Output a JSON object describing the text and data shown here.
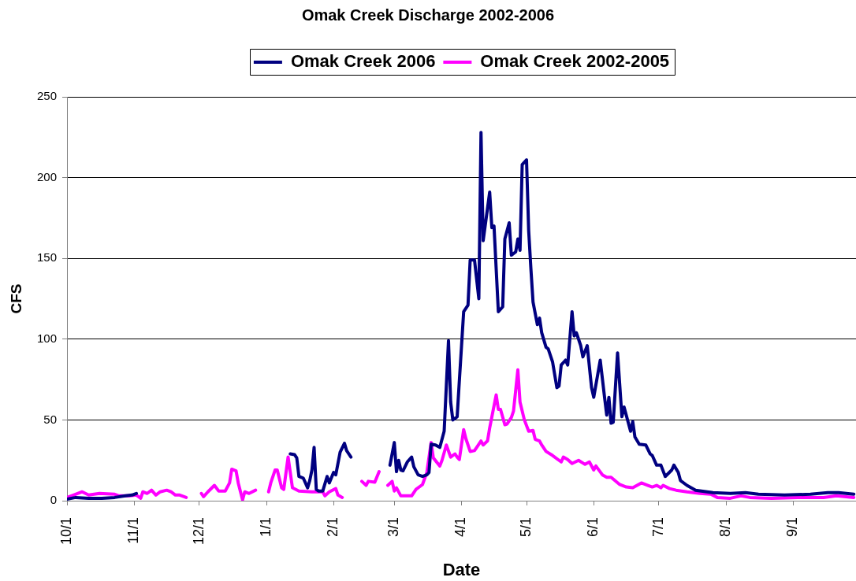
{
  "chart_data": {
    "type": "line",
    "title": "Omak Creek Discharge 2002-2006",
    "xlabel": "Date",
    "ylabel": "CFS",
    "xlim": [
      "2005-10-01",
      "2006-09-30"
    ],
    "xticks": [
      {
        "value": "2005-10-01",
        "label": "10/1"
      },
      {
        "value": "2005-11-01",
        "label": "11/1"
      },
      {
        "value": "2005-12-01",
        "label": "12/1"
      },
      {
        "value": "2006-01-01",
        "label": "1/1"
      },
      {
        "value": "2006-02-01",
        "label": "2/1"
      },
      {
        "value": "2006-03-01",
        "label": "3/1"
      },
      {
        "value": "2006-04-01",
        "label": "4/1"
      },
      {
        "value": "2006-05-01",
        "label": "5/1"
      },
      {
        "value": "2006-06-01",
        "label": "6/1"
      },
      {
        "value": "2006-07-01",
        "label": "7/1"
      },
      {
        "value": "2006-08-01",
        "label": "8/1"
      },
      {
        "value": "2006-09-01",
        "label": "9/1"
      }
    ],
    "ylim": [
      0,
      250
    ],
    "yticks": [
      0,
      50,
      100,
      150,
      200,
      250
    ],
    "grid": "y",
    "legend": "top",
    "line_style": "solid",
    "series": [
      {
        "name": "Omak Creek 2006",
        "color": "#000080",
        "x": [
          "2005-10-01",
          "2005-10-05",
          "2005-10-11",
          "2005-10-17",
          "2005-10-23",
          "2005-10-28",
          "2005-10-31",
          "2005-11-02",
          "2005-11-20",
          "2006-01-12",
          "2006-01-14",
          "2006-01-15",
          "2006-01-16",
          "2006-01-18",
          "2006-01-19",
          "2006-01-20",
          "2006-01-21",
          "2006-01-22",
          "2006-01-23",
          "2006-01-24",
          "2006-01-25",
          "2006-01-27",
          "2006-01-29",
          "2006-01-30",
          "2006-02-01",
          "2006-02-02",
          "2006-02-04",
          "2006-02-06",
          "2006-02-07",
          "2006-02-09",
          "2006-02-18",
          "2006-02-27",
          "2006-03-01",
          "2006-03-02",
          "2006-03-03",
          "2006-03-04",
          "2006-03-05",
          "2006-03-07",
          "2006-03-09",
          "2006-03-10",
          "2006-03-12",
          "2006-03-14",
          "2006-03-16",
          "2006-03-17",
          "2006-03-18",
          "2006-03-20",
          "2006-03-22",
          "2006-03-24",
          "2006-03-26",
          "2006-03-27",
          "2006-03-28",
          "2006-03-30",
          "2006-03-31",
          "2006-04-02",
          "2006-04-04",
          "2006-04-05",
          "2006-04-07",
          "2006-04-09",
          "2006-04-10",
          "2006-04-11",
          "2006-04-14",
          "2006-04-15",
          "2006-04-16",
          "2006-04-18",
          "2006-04-20",
          "2006-04-21",
          "2006-04-23",
          "2006-04-24",
          "2006-04-26",
          "2006-04-27",
          "2006-04-28",
          "2006-04-29",
          "2006-05-01",
          "2006-05-02",
          "2006-05-03",
          "2006-05-04",
          "2006-05-06",
          "2006-05-07",
          "2006-05-08",
          "2006-05-10",
          "2006-05-11",
          "2006-05-13",
          "2006-05-15",
          "2006-05-16",
          "2006-05-17",
          "2006-05-19",
          "2006-05-20",
          "2006-05-22",
          "2006-05-23",
          "2006-05-24",
          "2006-05-26",
          "2006-05-27",
          "2006-05-29",
          "2006-05-31",
          "2006-06-01",
          "2006-06-04",
          "2006-06-06",
          "2006-06-07",
          "2006-06-08",
          "2006-06-09",
          "2006-06-10",
          "2006-06-12",
          "2006-06-14",
          "2006-06-15",
          "2006-06-17",
          "2006-06-18",
          "2006-06-19",
          "2006-06-20",
          "2006-06-22",
          "2006-06-25",
          "2006-06-27",
          "2006-06-28",
          "2006-06-30",
          "2006-07-02",
          "2006-07-04",
          "2006-07-07",
          "2006-07-08",
          "2006-07-10",
          "2006-07-11",
          "2006-07-14",
          "2006-07-18",
          "2006-07-26",
          "2006-08-03",
          "2006-08-10",
          "2006-08-16",
          "2006-08-28",
          "2006-09-09",
          "2006-09-17",
          "2006-09-22",
          "2006-09-29"
        ],
        "values": [
          1,
          2,
          1.5,
          1.5,
          2,
          3,
          3.5,
          4.5,
          null,
          29,
          28.5,
          26.5,
          15,
          14,
          11,
          8,
          12.5,
          19,
          33,
          7,
          6,
          6,
          15,
          11,
          17.5,
          16,
          30,
          35.5,
          31,
          27,
          null,
          22,
          36,
          18,
          25,
          19,
          18.5,
          24,
          27,
          21,
          16,
          15,
          16,
          17.5,
          35,
          34.5,
          33,
          43,
          99,
          61,
          50,
          52,
          74,
          117,
          121,
          149,
          149,
          125,
          228,
          161,
          191,
          169,
          170,
          117,
          120,
          162,
          172,
          152,
          154,
          162,
          155,
          208,
          211,
          167,
          144,
          123,
          109,
          113,
          104,
          95,
          94,
          86,
          70,
          71,
          84,
          87,
          84,
          117,
          102,
          104,
          96,
          89,
          96,
          70,
          64,
          87,
          64,
          53,
          64,
          48,
          48.5,
          91.5,
          52,
          58,
          48,
          43,
          49,
          39.5,
          35,
          34.5,
          29,
          28,
          22,
          22,
          15,
          19,
          22,
          17.5,
          12.5,
          9.5,
          6.5,
          5,
          4.5,
          5,
          4,
          3.5,
          4,
          5,
          5,
          4
        ]
      },
      {
        "name": "Omak Creek 2002-2005",
        "color": "#ff00ff",
        "x": [
          "2005-10-01",
          "2005-10-04",
          "2005-10-08",
          "2005-10-11",
          "2005-10-16",
          "2005-10-23",
          "2005-10-25",
          "2005-10-30",
          "2005-11-02",
          "2005-11-04",
          "2005-11-05",
          "2005-11-07",
          "2005-11-09",
          "2005-11-11",
          "2005-11-13",
          "2005-11-16",
          "2005-11-18",
          "2005-11-20",
          "2005-11-22",
          "2005-11-25",
          "2005-11-28",
          "2005-12-02",
          "2005-12-03",
          "2005-12-05",
          "2005-12-08",
          "2005-12-10",
          "2005-12-13",
          "2005-12-15",
          "2005-12-16",
          "2005-12-18",
          "2005-12-19",
          "2005-12-21",
          "2005-12-22",
          "2005-12-24",
          "2005-12-27",
          "2005-12-30",
          "2006-01-02",
          "2006-01-03",
          "2006-01-05",
          "2006-01-06",
          "2006-01-08",
          "2006-01-09",
          "2006-01-11",
          "2006-01-12",
          "2006-01-13",
          "2006-01-16",
          "2006-01-22",
          "2006-01-27",
          "2006-01-28",
          "2006-01-30",
          "2006-02-02",
          "2006-02-03",
          "2006-02-05",
          "2006-02-10",
          "2006-02-14",
          "2006-02-16",
          "2006-02-17",
          "2006-02-20",
          "2006-02-22",
          "2006-02-24",
          "2006-02-26",
          "2006-02-28",
          "2006-03-01",
          "2006-03-02",
          "2006-03-04",
          "2006-03-09",
          "2006-03-11",
          "2006-03-14",
          "2006-03-16",
          "2006-03-18",
          "2006-03-19",
          "2006-03-22",
          "2006-03-23",
          "2006-03-25",
          "2006-03-27",
          "2006-03-29",
          "2006-03-30",
          "2006-03-31",
          "2006-04-02",
          "2006-04-03",
          "2006-04-05",
          "2006-04-07",
          "2006-04-08",
          "2006-04-10",
          "2006-04-11",
          "2006-04-13",
          "2006-04-14",
          "2006-04-17",
          "2006-04-18",
          "2006-04-19",
          "2006-04-21",
          "2006-04-22",
          "2006-04-24",
          "2006-04-25",
          "2006-04-27",
          "2006-04-28",
          "2006-04-30",
          "2006-05-02",
          "2006-05-04",
          "2006-05-05",
          "2006-05-07",
          "2006-05-08",
          "2006-05-10",
          "2006-05-13",
          "2006-05-17",
          "2006-05-18",
          "2006-05-20",
          "2006-05-22",
          "2006-05-25",
          "2006-05-28",
          "2006-05-30",
          "2006-06-01",
          "2006-06-02",
          "2006-06-05",
          "2006-06-07",
          "2006-06-09",
          "2006-06-13",
          "2006-06-16",
          "2006-06-19",
          "2006-06-21",
          "2006-06-23",
          "2006-06-26",
          "2006-06-28",
          "2006-06-30",
          "2006-07-02",
          "2006-07-03",
          "2006-07-06",
          "2006-07-09",
          "2006-07-14",
          "2006-07-20",
          "2006-07-25",
          "2006-07-28",
          "2006-08-03",
          "2006-08-08",
          "2006-08-12",
          "2006-08-22",
          "2006-09-03",
          "2006-09-15",
          "2006-09-21",
          "2006-09-29"
        ],
        "values": [
          2,
          3.5,
          5.5,
          3.5,
          4.5,
          4,
          3,
          3,
          3.5,
          1.5,
          5.5,
          4.5,
          6.5,
          3.5,
          5.5,
          6.5,
          5.5,
          3.5,
          3.5,
          2,
          null,
          4.5,
          2.5,
          5.5,
          9.5,
          6,
          6,
          11,
          19.5,
          18.5,
          11,
          0.5,
          5.5,
          4.5,
          6.5,
          null,
          5.5,
          11,
          19,
          19,
          8,
          7,
          27,
          17.5,
          8,
          6,
          5.5,
          5.5,
          3,
          5.5,
          7.5,
          3.5,
          2,
          null,
          12,
          9.5,
          12,
          11.5,
          18,
          null,
          9.5,
          12,
          6,
          8,
          3,
          3,
          7,
          10,
          17.5,
          36,
          26.5,
          21.5,
          25,
          34.5,
          27,
          29,
          27,
          25.5,
          44,
          38.5,
          30.5,
          31,
          33,
          37,
          34.5,
          37,
          45,
          65.5,
          56.5,
          56.5,
          47,
          47.5,
          51.5,
          55.5,
          81,
          61,
          50,
          43,
          43.5,
          38,
          37,
          34.5,
          30.5,
          28,
          24,
          27,
          25.5,
          23,
          25,
          22.5,
          24,
          19,
          21.5,
          16,
          14.5,
          14.5,
          10,
          8.5,
          8,
          9.5,
          11,
          9.5,
          8.5,
          9.5,
          8,
          9.5,
          7.5,
          6.5,
          5.5,
          4.5,
          4,
          2,
          1.5,
          3,
          2,
          1.5,
          2,
          2,
          3,
          2
        ]
      }
    ]
  }
}
